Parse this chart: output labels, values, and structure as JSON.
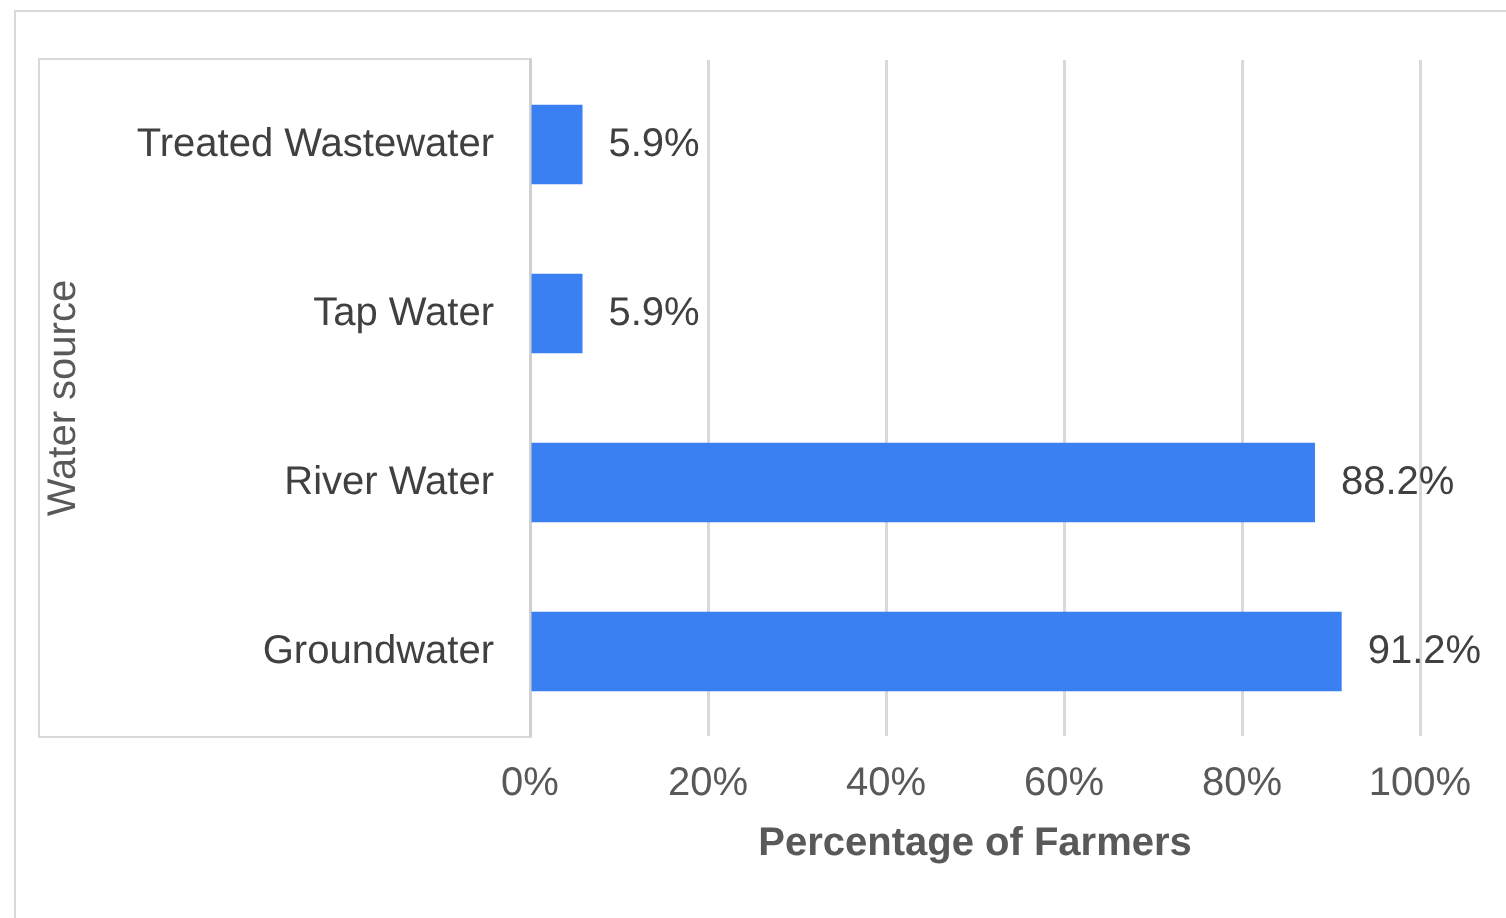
{
  "chart_data": {
    "type": "bar",
    "orientation": "horizontal",
    "categories": [
      "Treated Wastewater",
      "Tap Water",
      "River Water",
      "Groundwater"
    ],
    "values": [
      5.9,
      5.9,
      88.2,
      91.2
    ],
    "color": "#3a80f2",
    "value_labels": [
      "5.9%",
      "5.9%",
      "88.2%",
      "91.2%"
    ],
    "xlabel": "Percentage of Farmers",
    "ylabel": "Water source",
    "xlim": [
      0,
      100
    ],
    "xticks": [
      {
        "value": 0,
        "label": "0%"
      },
      {
        "value": 20,
        "label": "20%"
      },
      {
        "value": 40,
        "label": "40%"
      },
      {
        "value": 60,
        "label": "60%"
      },
      {
        "value": 80,
        "label": "80%"
      },
      {
        "value": 100,
        "label": "100%"
      }
    ],
    "grid": "x"
  }
}
